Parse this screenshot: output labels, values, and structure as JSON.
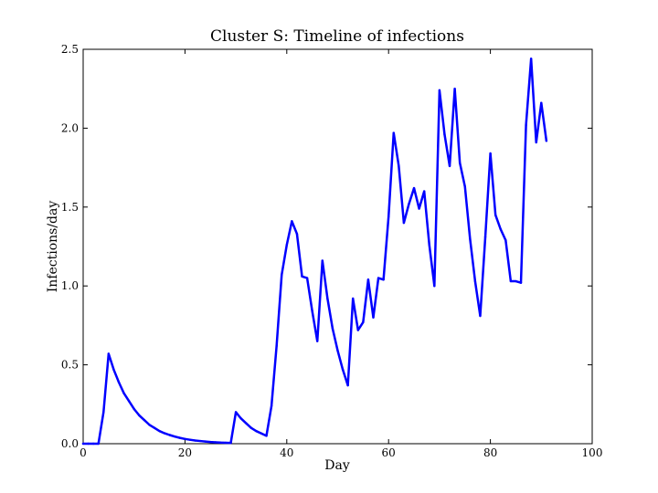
{
  "chart_data": {
    "type": "line",
    "title": "Cluster S: Timeline of infections",
    "xlabel": "Day",
    "ylabel": "Infections/day",
    "xlim": [
      0,
      100
    ],
    "ylim": [
      0,
      2.5
    ],
    "xticks": [
      0,
      20,
      40,
      60,
      80,
      100
    ],
    "xtick_labels": [
      "0",
      "20",
      "40",
      "60",
      "80",
      "100"
    ],
    "yticks": [
      0,
      0.5,
      1.0,
      1.5,
      2.0,
      2.5
    ],
    "ytick_labels": [
      "0.0",
      "0.5",
      "1.0",
      "1.5",
      "2.0",
      "2.5"
    ],
    "grid": false,
    "series": [
      {
        "color": "#0000ff",
        "x": [
          0,
          1,
          2,
          3,
          4,
          5,
          6,
          7,
          8,
          9,
          10,
          11,
          12,
          13,
          14,
          15,
          16,
          17,
          18,
          19,
          20,
          21,
          22,
          23,
          24,
          25,
          26,
          27,
          28,
          29,
          30,
          31,
          32,
          33,
          34,
          35,
          36,
          37,
          38,
          39,
          40,
          41,
          42,
          43,
          44,
          45,
          46,
          47,
          48,
          49,
          50,
          51,
          52,
          53,
          54,
          55,
          56,
          57,
          58,
          59,
          60,
          61,
          62,
          63,
          64,
          65,
          66,
          67,
          68,
          69,
          70,
          71,
          72,
          73,
          74,
          75,
          76,
          77,
          78,
          79,
          80,
          81,
          82,
          83,
          84,
          85,
          86,
          87,
          88,
          89,
          90,
          91
        ],
        "y": [
          0,
          0,
          0,
          0,
          0.2,
          0.57,
          0.47,
          0.39,
          0.32,
          0.27,
          0.22,
          0.18,
          0.15,
          0.12,
          0.1,
          0.08,
          0.066,
          0.055,
          0.045,
          0.037,
          0.03,
          0.025,
          0.02,
          0.017,
          0.014,
          0.011,
          0.009,
          0.007,
          0.006,
          0.005,
          0.2,
          0.16,
          0.13,
          0.1,
          0.08,
          0.065,
          0.05,
          0.24,
          0.62,
          1.07,
          1.26,
          1.41,
          1.33,
          1.06,
          1.05,
          0.84,
          0.65,
          1.16,
          0.92,
          0.73,
          0.59,
          0.47,
          0.37,
          0.92,
          0.72,
          0.77,
          1.04,
          0.8,
          1.05,
          1.04,
          1.44,
          1.97,
          1.76,
          1.4,
          1.52,
          1.62,
          1.49,
          1.6,
          1.26,
          1.0,
          2.24,
          1.96,
          1.76,
          2.25,
          1.78,
          1.63,
          1.3,
          1.03,
          0.81,
          1.31,
          1.84,
          1.45,
          1.36,
          1.29,
          1.03,
          1.03,
          1.02,
          2.02,
          2.44,
          1.91,
          2.16,
          1.92
        ]
      }
    ]
  }
}
